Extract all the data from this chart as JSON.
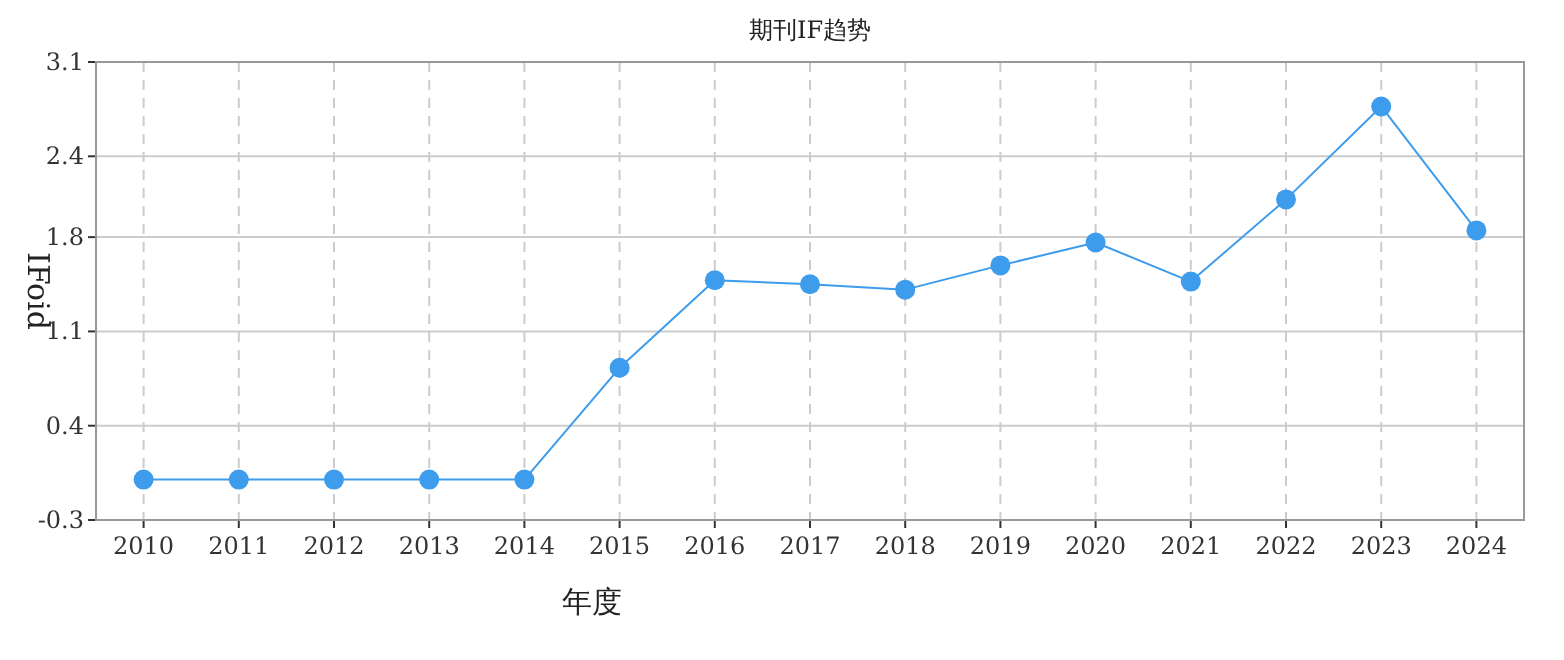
{
  "chart_data": {
    "type": "line",
    "title": "期刊IF趋势",
    "xlabel": "年度",
    "ylabel": "IFoid",
    "categories": [
      "2010",
      "2011",
      "2012",
      "2013",
      "2014",
      "2015",
      "2016",
      "2017",
      "2018",
      "2019",
      "2020",
      "2021",
      "2022",
      "2023",
      "2024"
    ],
    "series": [
      {
        "color": "#3d9cec",
        "values": [
          0,
          0,
          0,
          0,
          0,
          0.83,
          1.48,
          1.45,
          1.41,
          1.59,
          1.76,
          1.47,
          2.08,
          2.77,
          1.85
        ]
      }
    ],
    "ylim": [
      -0.3,
      3.1
    ],
    "yticks": [
      -0.3,
      0.4,
      1.1,
      1.8,
      2.4,
      3.1
    ],
    "grid": true,
    "marker": "circle",
    "line_style": "solid"
  }
}
